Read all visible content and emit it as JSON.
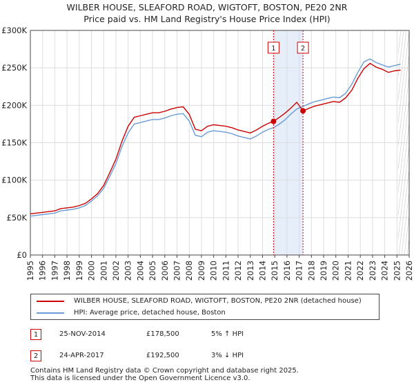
{
  "chart_title": {
    "line1": "WILBER HOUSE, SLEAFORD ROAD, WIGTOFT, BOSTON, PE20 2NR",
    "line2": "Price paid vs. HM Land Registry's House Price Index (HPI)"
  },
  "colors": {
    "price_line": "#cc0000",
    "hpi_line": "#6a9bd8",
    "highlight_band": "#e6eefa",
    "marker_border": "#cc0000",
    "grid": "#dddddd"
  },
  "chart_data": {
    "type": "line",
    "title": "WILBER HOUSE, SLEAFORD ROAD, WIGTOFT, BOSTON, PE20 2NR — Price paid vs. HM Land Registry's House Price Index (HPI)",
    "xlabel": "",
    "ylabel": "",
    "xlim": [
      1995,
      2026
    ],
    "ylim": [
      0,
      300000
    ],
    "grid": true,
    "x_ticks": [
      "1995",
      "1996",
      "1997",
      "1998",
      "1999",
      "2000",
      "2001",
      "2002",
      "2003",
      "2004",
      "2005",
      "2006",
      "2007",
      "2008",
      "2009",
      "2010",
      "2011",
      "2012",
      "2013",
      "2014",
      "2015",
      "2016",
      "2017",
      "2018",
      "2019",
      "2020",
      "2021",
      "2022",
      "2023",
      "2024",
      "2025",
      "2026"
    ],
    "y_ticks": [
      {
        "value": 0,
        "label": "£0"
      },
      {
        "value": 50000,
        "label": "£50K"
      },
      {
        "value": 100000,
        "label": "£100K"
      },
      {
        "value": 150000,
        "label": "£150K"
      },
      {
        "value": 200000,
        "label": "£200K"
      },
      {
        "value": 250000,
        "label": "£250K"
      },
      {
        "value": 300000,
        "label": "£300K"
      }
    ],
    "highlight_band": {
      "from": 2014.9,
      "to": 2017.31
    },
    "forecast_from": 2025.1,
    "series": [
      {
        "name": "WILBER HOUSE, SLEAFORD ROAD, WIGTOFT, BOSTON, PE20 2NR (detached house)",
        "x": [
          1995.0,
          1995.5,
          1996.0,
          1996.5,
          1997.0,
          1997.5,
          1998.0,
          1998.5,
          1999.0,
          1999.5,
          2000.0,
          2000.5,
          2001.0,
          2001.5,
          2002.0,
          2002.5,
          2003.0,
          2003.5,
          2004.0,
          2004.5,
          2005.0,
          2005.5,
          2006.0,
          2006.5,
          2007.0,
          2007.5,
          2008.0,
          2008.5,
          2009.0,
          2009.5,
          2010.0,
          2010.5,
          2011.0,
          2011.5,
          2012.0,
          2012.5,
          2013.0,
          2013.5,
          2014.0,
          2014.5,
          2014.9,
          2015.3,
          2015.8,
          2016.3,
          2016.8,
          2017.31,
          2017.8,
          2018.3,
          2018.8,
          2019.3,
          2019.8,
          2020.3,
          2020.8,
          2021.3,
          2021.8,
          2022.3,
          2022.8,
          2023.3,
          2023.8,
          2024.3,
          2024.8,
          2025.3
        ],
        "values": [
          55000,
          56000,
          57000,
          58000,
          59000,
          62000,
          63000,
          64000,
          66000,
          69000,
          75000,
          82000,
          93000,
          110000,
          128000,
          152000,
          172000,
          184000,
          186000,
          188000,
          190000,
          190000,
          192000,
          195000,
          197000,
          198000,
          188000,
          168000,
          166000,
          172000,
          174000,
          173000,
          172000,
          170000,
          167000,
          165000,
          163000,
          167000,
          172000,
          176000,
          178500,
          183000,
          189000,
          196000,
          204000,
          192500,
          196000,
          199000,
          201000,
          203000,
          205000,
          204000,
          210000,
          220000,
          236000,
          249000,
          256000,
          251000,
          248000,
          244000,
          246000,
          247000
        ]
      },
      {
        "name": "HPI: Average price, detached house, Boston",
        "x": [
          1995.0,
          1995.5,
          1996.0,
          1996.5,
          1997.0,
          1997.5,
          1998.0,
          1998.5,
          1999.0,
          1999.5,
          2000.0,
          2000.5,
          2001.0,
          2001.5,
          2002.0,
          2002.5,
          2003.0,
          2003.5,
          2004.0,
          2004.5,
          2005.0,
          2005.5,
          2006.0,
          2006.5,
          2007.0,
          2007.5,
          2008.0,
          2008.5,
          2009.0,
          2009.5,
          2010.0,
          2010.5,
          2011.0,
          2011.5,
          2012.0,
          2012.5,
          2013.0,
          2013.5,
          2014.0,
          2014.5,
          2014.9,
          2015.3,
          2015.8,
          2016.3,
          2016.8,
          2017.31,
          2017.8,
          2018.3,
          2018.8,
          2019.3,
          2019.8,
          2020.3,
          2020.8,
          2021.3,
          2021.8,
          2022.3,
          2022.8,
          2023.3,
          2023.8,
          2024.3,
          2024.8,
          2025.3
        ],
        "values": [
          52000,
          53000,
          54000,
          55000,
          56000,
          59000,
          60000,
          61000,
          63000,
          66000,
          72000,
          79000,
          89000,
          105000,
          122000,
          145000,
          163000,
          175000,
          177000,
          179000,
          181000,
          181000,
          183000,
          186000,
          188000,
          189000,
          179000,
          160000,
          158000,
          164000,
          166000,
          165000,
          164000,
          162000,
          159000,
          157000,
          155000,
          159000,
          164000,
          168000,
          170000,
          174000,
          180000,
          188000,
          195000,
          198500,
          202000,
          205000,
          207000,
          209000,
          211000,
          210000,
          216000,
          228000,
          244000,
          258000,
          262000,
          257000,
          254000,
          251000,
          253000,
          255000
        ]
      }
    ],
    "sales": [
      {
        "num": "1",
        "x": 2014.9,
        "value": 178500
      },
      {
        "num": "2",
        "x": 2017.31,
        "value": 192500
      }
    ]
  },
  "legend": {
    "items": [
      {
        "label": "WILBER HOUSE, SLEAFORD ROAD, WIGTOFT, BOSTON, PE20 2NR (detached house)"
      },
      {
        "label": "HPI: Average price, detached house, Boston"
      }
    ]
  },
  "sales_table": [
    {
      "num": "1",
      "date": "25-NOV-2014",
      "price": "£178,500",
      "hpi": "5% ↑ HPI"
    },
    {
      "num": "2",
      "date": "24-APR-2017",
      "price": "£192,500",
      "hpi": "3% ↓ HPI"
    }
  ],
  "footer": {
    "line1": "Contains HM Land Registry data © Crown copyright and database right 2025.",
    "line2": "This data is licensed under the Open Government Licence v3.0."
  }
}
